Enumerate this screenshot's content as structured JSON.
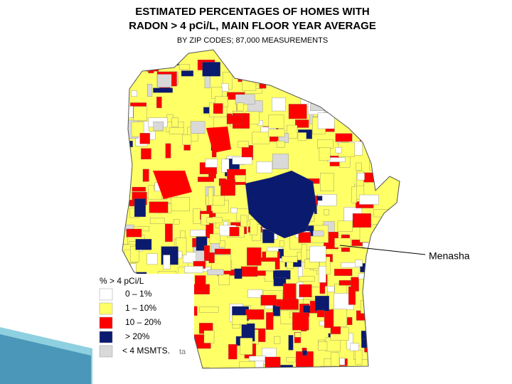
{
  "map": {
    "title_line1": "ESTIMATED PERCENTAGES OF HOMES WITH",
    "title_line2": "RADON > 4 pCi/L, MAIN FLOOR YEAR AVERAGE",
    "subtitle": "BY ZIP CODES;  87,000 MEASUREMENTS",
    "legend": {
      "title": "% > 4 pCi/L",
      "items": [
        {
          "label": "0 – 1%",
          "color": "#ffffff"
        },
        {
          "label": "1 – 10%",
          "color": "#ffff66"
        },
        {
          "label": "10 – 20%",
          "color": "#ff0000"
        },
        {
          "label": "> 20%",
          "color": "#0a1a6e"
        },
        {
          "label": "< 4 MSMTS.",
          "color": "#d9d9d9"
        }
      ]
    },
    "city_label": "Menasha",
    "stray_text": "ta"
  }
}
